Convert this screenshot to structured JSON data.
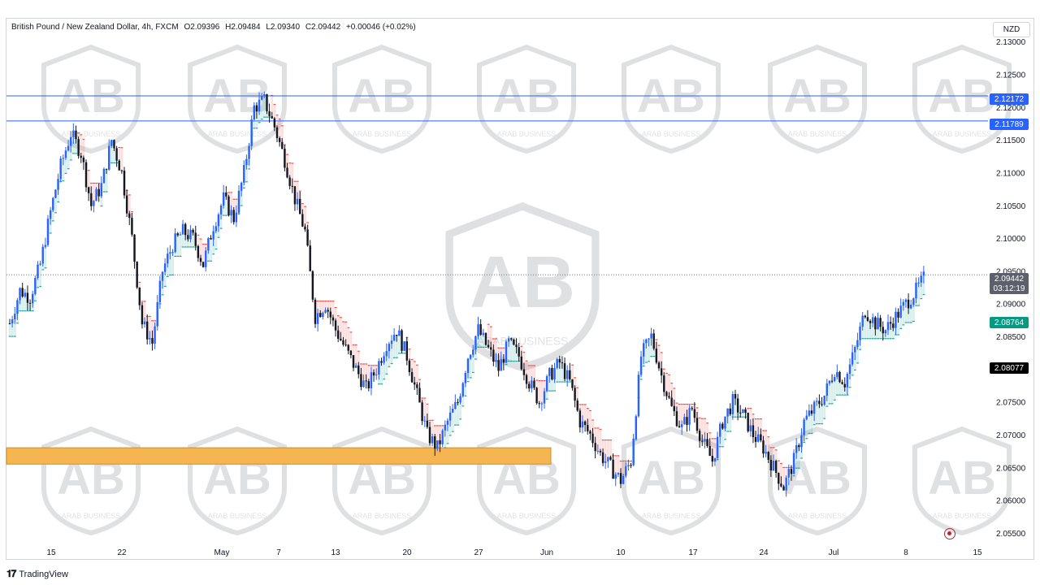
{
  "header": {
    "symbol": "British Pound / New Zealand Dollar, 4h, FXCM",
    "open": "O2.09396",
    "high": "H2.09484",
    "low": "L2.09340",
    "close": "C2.09442",
    "change": "+0.00046 (+0.02%)"
  },
  "currency_button": "NZD",
  "brand": "TradingView",
  "watermark_text": "ARAB BUSINESS",
  "price_labels": {
    "resistance_1": "2.12172",
    "resistance_2": "2.11789",
    "last_price": "2.09442",
    "countdown": "03:12:19",
    "trail_level": "2.08764",
    "crosshair_level": "2.08077"
  },
  "colors": {
    "up": "#2962ff",
    "down": "#131722",
    "resistance_line": "#2962ff",
    "zone_fill": "#f5b651",
    "bull_fill": "#26a69a",
    "bear_fill": "#ef5350",
    "label_blue": "#2962ff",
    "label_green": "#089981",
    "label_black": "#000000",
    "label_grey": "#5d606b"
  },
  "chart_data": {
    "type": "line",
    "title": "British Pound / New Zealand Dollar, 4h, FXCM",
    "y_ticks": [
      "2.13000",
      "2.12500",
      "2.12000",
      "2.11500",
      "2.11000",
      "2.10500",
      "2.10000",
      "2.09500",
      "2.09000",
      "2.08500",
      "2.08000",
      "2.07500",
      "2.07000",
      "2.06500",
      "2.06000",
      "2.05500"
    ],
    "ylim": [
      2.0535,
      2.1335
    ],
    "x_ticks": [
      "15",
      "22",
      "May",
      "7",
      "13",
      "20",
      "27",
      "Jun",
      "10",
      "17",
      "24",
      "Jul",
      "8",
      "15"
    ],
    "series": [
      {
        "values": [
          2.087,
          2.092,
          2.091,
          2.096,
          2.104,
          2.111,
          2.116,
          2.113,
          2.105,
          2.108,
          2.115,
          2.11,
          2.1,
          2.087,
          2.084,
          2.095,
          2.099,
          2.101,
          2.1,
          2.096,
          2.102,
          2.106,
          2.103,
          2.11,
          2.12,
          2.121,
          2.117,
          2.112,
          2.106,
          2.101,
          2.088,
          2.09,
          2.086,
          2.083,
          2.08,
          2.077,
          2.08,
          2.084,
          2.086,
          2.082,
          2.076,
          2.07,
          2.068,
          2.072,
          2.075,
          2.082,
          2.086,
          2.083,
          2.08,
          2.084,
          2.082,
          2.078,
          2.075,
          2.079,
          2.081,
          2.078,
          2.072,
          2.07,
          2.067,
          2.065,
          2.063,
          2.066,
          2.082,
          2.085,
          2.079,
          2.074,
          2.071,
          2.074,
          2.069,
          2.066,
          2.072,
          2.075,
          2.073,
          2.07,
          2.068,
          2.065,
          2.062,
          2.066,
          2.072,
          2.074,
          2.076,
          2.08,
          2.078,
          2.083,
          2.089,
          2.087,
          2.086,
          2.088,
          2.09,
          2.092,
          2.0944
        ]
      }
    ],
    "resistance_levels": [
      2.12172,
      2.11789
    ],
    "support_zone": [
      2.0655,
      2.068
    ]
  }
}
